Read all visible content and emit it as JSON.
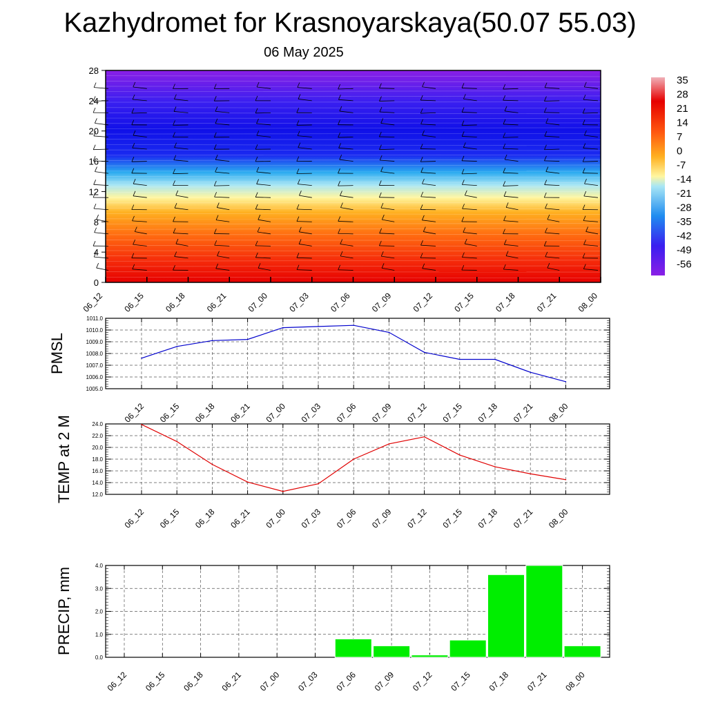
{
  "header": {
    "title": "Kazhydromet for Krasnoyarskaya(50.07 55.03)",
    "subtitle": "06 May 2025"
  },
  "colors": {
    "pmsl_line": "#0000cc",
    "temp_line": "#e00000",
    "precip_bar": "#00ee00",
    "cross_section_palette": [
      "#8a1fe6",
      "#3a1ff0",
      "#1a2af0",
      "#1f8cf0",
      "#4ad0f5",
      "#fff6a0",
      "#ffd020",
      "#ff9a10",
      "#ff5a10",
      "#f01a0a",
      "#e60000",
      "#f0a0b0"
    ]
  },
  "chart_data": [
    {
      "type": "heatmap",
      "name": "vertical-cross-section",
      "x": [
        "06_12",
        "06_15",
        "06_18",
        "06_21",
        "07_00",
        "07_03",
        "07_06",
        "07_09",
        "07_12",
        "07_15",
        "07_18",
        "07_21",
        "08_00"
      ],
      "y_ticks": [
        0,
        4,
        8,
        12,
        16,
        20,
        24,
        28
      ],
      "ylim": [
        0,
        28
      ],
      "colorbar_labels": [
        "35",
        "28",
        "21",
        "14",
        "7",
        "0",
        "-7",
        "-14",
        "-21",
        "-28",
        "-35",
        "-42",
        "-49",
        "-56"
      ],
      "wind_barbs": true
    },
    {
      "type": "line",
      "name": "pmsl",
      "ylabel": "PMSL",
      "x": [
        "06_12",
        "06_15",
        "06_18",
        "06_21",
        "07_00",
        "07_03",
        "07_06",
        "07_09",
        "07_12",
        "07_15",
        "07_18",
        "07_21",
        "08_00"
      ],
      "values": [
        1007.6,
        1008.6,
        1009.1,
        1009.2,
        1010.2,
        1010.3,
        1010.4,
        1009.8,
        1008.1,
        1007.5,
        1007.5,
        1006.4,
        1005.6
      ],
      "ylim": [
        1005.0,
        1011.0
      ],
      "y_ticks": [
        "1005.0",
        "1006.0",
        "1007.0",
        "1008.0",
        "1009.0",
        "1010.0",
        "1011.0"
      ],
      "grid": true
    },
    {
      "type": "line",
      "name": "temperature",
      "ylabel": "TEMP at 2 M",
      "x": [
        "06_12",
        "06_15",
        "06_18",
        "06_21",
        "07_00",
        "07_03",
        "07_06",
        "07_09",
        "07_12",
        "07_15",
        "07_18",
        "07_21",
        "08_00"
      ],
      "values": [
        23.9,
        21.0,
        17.1,
        14.1,
        12.5,
        13.8,
        18.0,
        20.6,
        21.8,
        18.7,
        16.7,
        15.5,
        14.5
      ],
      "ylim": [
        12.0,
        24.0
      ],
      "y_ticks": [
        "12.0",
        "14.0",
        "16.0",
        "18.0",
        "20.0",
        "22.0",
        "24.0"
      ],
      "grid": true
    },
    {
      "type": "bar",
      "name": "precipitation",
      "ylabel": "PRECIP, mm",
      "categories": [
        "06_12",
        "06_15",
        "06_18",
        "06_21",
        "07_00",
        "07_03",
        "07_06",
        "07_09",
        "07_12",
        "07_15",
        "07_18",
        "07_21",
        "08_00"
      ],
      "values": [
        0,
        0,
        0,
        0,
        0,
        0,
        0.8,
        0.5,
        0.1,
        0.75,
        3.6,
        4.0,
        0.5
      ],
      "ylim": [
        0.0,
        4.0
      ],
      "y_ticks": [
        "0.0",
        "1.0",
        "2.0",
        "3.0",
        "4.0"
      ],
      "grid": true
    }
  ]
}
